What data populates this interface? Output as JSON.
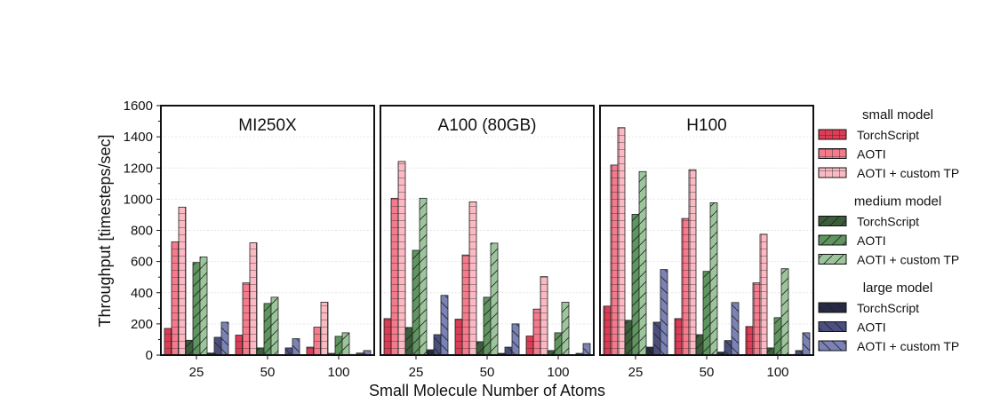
{
  "chart_data": {
    "type": "bar",
    "ylabel": "Throughput [timesteps/sec]",
    "xlabel": "Small Molecule Number of Atoms",
    "ylim": [
      0,
      1600
    ],
    "yticks": [
      0,
      200,
      400,
      600,
      800,
      1000,
      1200,
      1400,
      1600
    ],
    "categories": [
      "25",
      "50",
      "100"
    ],
    "grid": true,
    "legend_position": "right",
    "legend_groups": [
      {
        "title": "small model",
        "items": [
          "TorchScript",
          "AOTI",
          "AOTI + custom TP"
        ],
        "colors": [
          "#dc3d55",
          "#f47a8c",
          "#fbb9c3"
        ],
        "hatch": "grid"
      },
      {
        "title": "medium model",
        "items": [
          "TorchScript",
          "AOTI",
          "AOTI + custom TP"
        ],
        "colors": [
          "#3a5d3a",
          "#5f955f",
          "#9dc59c"
        ],
        "hatch": "forward-diagonal"
      },
      {
        "title": "large model",
        "items": [
          "TorchScript",
          "AOTI",
          "AOTI + custom TP"
        ],
        "colors": [
          "#262a44",
          "#4a4f80",
          "#7a82b6"
        ],
        "hatch": "back-diagonal"
      }
    ],
    "panels": [
      {
        "title": "MI250X",
        "series": [
          {
            "name": "small model TorchScript",
            "values": [
              171,
              128,
              51
            ]
          },
          {
            "name": "small model AOTI",
            "values": [
              726,
              463,
              179
            ]
          },
          {
            "name": "small model AOTI + custom TP",
            "values": [
              949,
              720,
              339
            ]
          },
          {
            "name": "medium model TorchScript",
            "values": [
              95,
              46,
              11
            ]
          },
          {
            "name": "medium model AOTI",
            "values": [
              594,
              331,
              120
            ]
          },
          {
            "name": "medium model AOTI + custom TP",
            "values": [
              629,
              371,
              143
            ]
          },
          {
            "name": "large model TorchScript",
            "values": [
              13,
              2,
              4
            ]
          },
          {
            "name": "large model AOTI",
            "values": [
              114,
              46,
              13
            ]
          },
          {
            "name": "large model AOTI + custom TP",
            "values": [
              211,
              105,
              29
            ]
          }
        ]
      },
      {
        "title": "A100 (80GB)",
        "series": [
          {
            "name": "small model TorchScript",
            "values": [
              234,
              230,
              122
            ]
          },
          {
            "name": "small model AOTI",
            "values": [
              1006,
              642,
              295
            ]
          },
          {
            "name": "small model AOTI + custom TP",
            "values": [
              1242,
              983,
              503
            ]
          },
          {
            "name": "medium model TorchScript",
            "values": [
              177,
              86,
              29
            ]
          },
          {
            "name": "medium model AOTI",
            "values": [
              672,
              371,
              143
            ]
          },
          {
            "name": "medium model AOTI + custom TP",
            "values": [
              1006,
              718,
              339
            ]
          },
          {
            "name": "large model TorchScript",
            "values": [
              34,
              11,
              3
            ]
          },
          {
            "name": "large model AOTI",
            "values": [
              131,
              51,
              11
            ]
          },
          {
            "name": "large model AOTI + custom TP",
            "values": [
              383,
              200,
              74
            ]
          }
        ]
      },
      {
        "title": "H100",
        "series": [
          {
            "name": "small model TorchScript",
            "values": [
              314,
              234,
              183
            ]
          },
          {
            "name": "small model AOTI",
            "values": [
              1219,
              876,
              463
            ]
          },
          {
            "name": "small model AOTI + custom TP",
            "values": [
              1459,
              1189,
              775
            ]
          },
          {
            "name": "medium model TorchScript",
            "values": [
              223,
              131,
              46
            ]
          },
          {
            "name": "medium model AOTI",
            "values": [
              903,
              537,
              240
            ]
          },
          {
            "name": "medium model AOTI + custom TP",
            "values": [
              1177,
              977,
              554
            ]
          },
          {
            "name": "large model TorchScript",
            "values": [
              51,
              19,
              4
            ]
          },
          {
            "name": "large model AOTI",
            "values": [
              211,
              93,
              29
            ]
          },
          {
            "name": "large model AOTI + custom TP",
            "values": [
              549,
              337,
              143
            ]
          }
        ]
      }
    ]
  }
}
